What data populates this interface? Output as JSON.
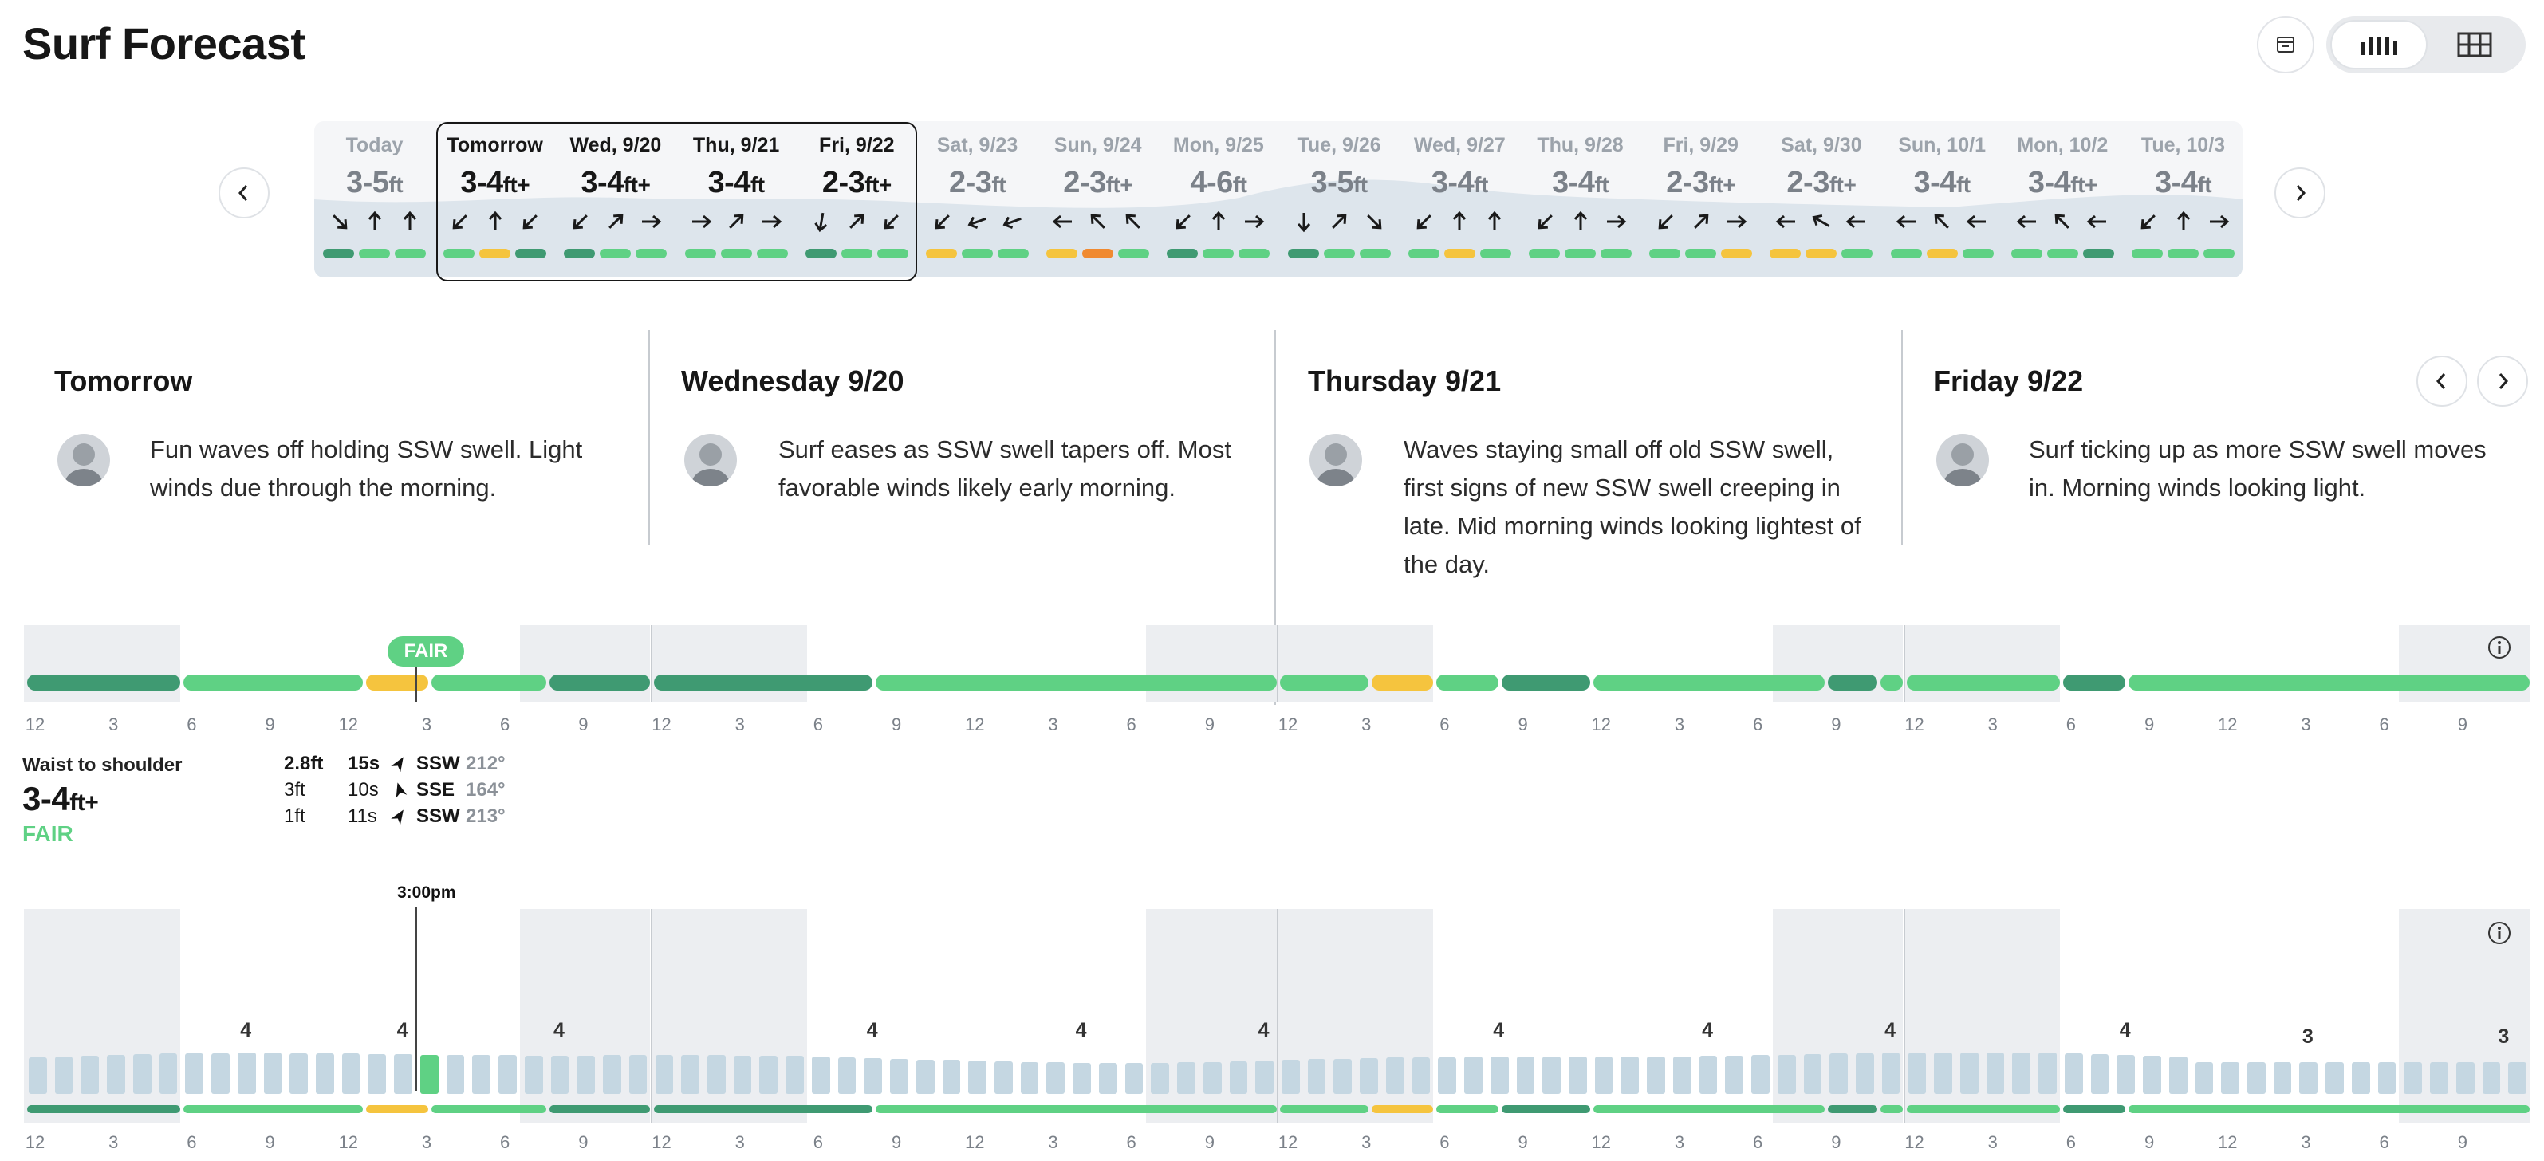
{
  "page_title": "Surf Forecast",
  "header": {
    "calendar_icon": "calendar-icon",
    "views": [
      {
        "name": "bar-chart-icon",
        "active": true
      },
      {
        "name": "grid-table-icon",
        "active": false
      }
    ]
  },
  "strip": {
    "days": [
      {
        "label": "Today",
        "height": "3-5",
        "plus": false,
        "state": "dim",
        "arrows": [
          135,
          0,
          0
        ],
        "bars": [
          "dkg",
          "lg",
          "lg"
        ]
      },
      {
        "label": "Tomorrow",
        "height": "3-4",
        "plus": true,
        "state": "sel",
        "arrows": [
          225,
          0,
          225
        ],
        "bars": [
          "lg",
          "yel",
          "dkg"
        ]
      },
      {
        "label": "Wed, 9/20",
        "height": "3-4",
        "plus": true,
        "state": "sel",
        "arrows": [
          225,
          45,
          90
        ],
        "bars": [
          "dkg",
          "lg",
          "lg"
        ]
      },
      {
        "label": "Thu, 9/21",
        "height": "3-4",
        "plus": false,
        "state": "sel",
        "arrows": [
          90,
          45,
          90
        ],
        "bars": [
          "lg",
          "lg",
          "lg"
        ]
      },
      {
        "label": "Fri, 9/22",
        "height": "2-3",
        "plus": true,
        "state": "sel",
        "arrows": [
          190,
          45,
          225
        ],
        "bars": [
          "dkg",
          "lg",
          "lg"
        ]
      },
      {
        "label": "Sat, 9/23",
        "height": "2-3",
        "plus": false,
        "state": "dim",
        "arrows": [
          225,
          250,
          250
        ],
        "bars": [
          "yel",
          "lg",
          "lg"
        ]
      },
      {
        "label": "Sun, 9/24",
        "height": "2-3",
        "plus": true,
        "state": "dim",
        "arrows": [
          270,
          315,
          315
        ],
        "bars": [
          "yel",
          "org",
          "lg"
        ]
      },
      {
        "label": "Mon, 9/25",
        "height": "4-6",
        "plus": false,
        "state": "dim",
        "arrows": [
          225,
          0,
          90
        ],
        "bars": [
          "dkg",
          "lg",
          "lg"
        ]
      },
      {
        "label": "Tue, 9/26",
        "height": "3-5",
        "plus": false,
        "state": "dim",
        "arrows": [
          180,
          45,
          135
        ],
        "bars": [
          "dkg",
          "lg",
          "lg"
        ]
      },
      {
        "label": "Wed, 9/27",
        "height": "3-4",
        "plus": false,
        "state": "dim",
        "arrows": [
          225,
          0,
          0
        ],
        "bars": [
          "lg",
          "yel",
          "lg"
        ]
      },
      {
        "label": "Thu, 9/28",
        "height": "3-4",
        "plus": false,
        "state": "dim",
        "arrows": [
          225,
          0,
          90
        ],
        "bars": [
          "lg",
          "lg",
          "lg"
        ]
      },
      {
        "label": "Fri, 9/29",
        "height": "2-3",
        "plus": true,
        "state": "dim",
        "arrows": [
          225,
          45,
          90
        ],
        "bars": [
          "lg",
          "lg",
          "yel"
        ]
      },
      {
        "label": "Sat, 9/30",
        "height": "2-3",
        "plus": true,
        "state": "dim",
        "arrows": [
          270,
          300,
          270
        ],
        "bars": [
          "yel",
          "yel",
          "lg"
        ]
      },
      {
        "label": "Sun, 10/1",
        "height": "3-4",
        "plus": false,
        "state": "dim",
        "arrows": [
          270,
          315,
          270
        ],
        "bars": [
          "lg",
          "yel",
          "lg"
        ]
      },
      {
        "label": "Mon, 10/2",
        "height": "3-4",
        "plus": true,
        "state": "dim",
        "arrows": [
          270,
          315,
          270
        ],
        "bars": [
          "lg",
          "lg",
          "dkg"
        ]
      },
      {
        "label": "Tue, 10/3",
        "height": "3-4",
        "plus": false,
        "state": "dim",
        "arrows": [
          225,
          0,
          90
        ],
        "bars": [
          "lg",
          "lg",
          "lg"
        ]
      }
    ],
    "unit": "ft",
    "plus_sign": "+"
  },
  "forecasts": [
    {
      "title": "Tomorrow",
      "text": "Fun waves off holding SSW swell. Light winds due through the morning."
    },
    {
      "title": "Wednesday 9/20",
      "text": "Surf eases as SSW swell tapers off. Most favorable winds likely early morning."
    },
    {
      "title": "Thursday 9/21",
      "text": "Waves staying small off old SSW swell, first signs of new SSW swell creeping in late. Mid morning winds looking lightest of the day."
    },
    {
      "title": "Friday 9/22",
      "text": "Surf ticking up as more SSW swell moves in. Morning winds looking light."
    }
  ],
  "rating_tooltip": "FAIR",
  "time_ticks": [
    "12",
    "3",
    "6",
    "9",
    "12",
    "3",
    "6",
    "9"
  ],
  "detail": {
    "descriptor": "Waist to shoulder",
    "height": "3-4",
    "unit": "ft",
    "plus": "+",
    "rating": "FAIR",
    "swells": [
      {
        "h": "2.8ft",
        "p": "15s",
        "dir": "SSW",
        "deg": "212°",
        "bold": true,
        "angle": 212
      },
      {
        "h": "3ft",
        "p": "10s",
        "dir": "SSE",
        "deg": "164°",
        "bold": false,
        "angle": 164
      },
      {
        "h": "1ft",
        "p": "11s",
        "dir": "SSW",
        "deg": "213°",
        "bold": false,
        "angle": 213
      }
    ]
  },
  "cursor_time": "3:00pm",
  "max_labels": [
    "4",
    "4",
    "4",
    "4",
    "4",
    "4",
    "4",
    "4",
    "4",
    "4",
    "3",
    "3"
  ],
  "colors": {
    "dkg": "#3f9a72",
    "lg": "#5fd184",
    "yel": "#f5c43e",
    "org": "#f08a30",
    "bar": "#c5d7e2",
    "night": "#eceef1",
    "active": "#5fd184"
  }
}
